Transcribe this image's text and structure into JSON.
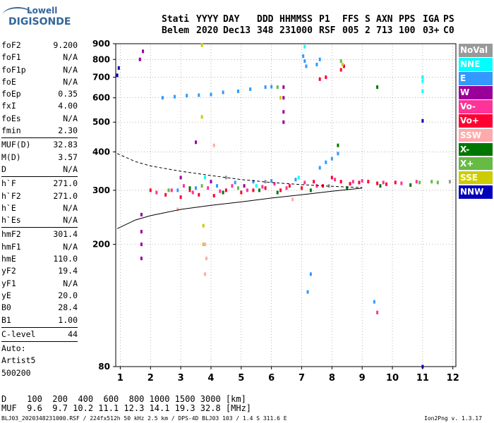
{
  "logo": {
    "line1": "Lowell",
    "line2": "DIGISONDE"
  },
  "header": {
    "labels": [
      "Stati",
      "YYYY",
      "DAY",
      "DDD",
      "HHMMSS",
      "P1",
      "FFS",
      "S",
      "AXN",
      "PPS",
      "IGA",
      "PS"
    ],
    "values": [
      "Belem",
      "2020",
      "Dec13",
      "348",
      "231000",
      "RSF",
      "005",
      "2",
      "713",
      "100",
      "03+",
      "C0"
    ]
  },
  "params": [
    {
      "name": "foF2",
      "value": "9.200"
    },
    {
      "name": "foF1",
      "value": "N/A"
    },
    {
      "name": "foF1p",
      "value": "N/A"
    },
    {
      "name": "foE",
      "value": "N/A"
    },
    {
      "name": "foEp",
      "value": "0.35"
    },
    {
      "name": "fxI",
      "value": "4.00"
    },
    {
      "name": "foEs",
      "value": "N/A"
    },
    {
      "name": "fmin",
      "value": "2.30"
    },
    {
      "sep": true
    },
    {
      "name": "MUF(D)",
      "value": "32.83"
    },
    {
      "name": "M(D)",
      "value": "3.57"
    },
    {
      "name": "D",
      "value": "N/A"
    },
    {
      "sep": true
    },
    {
      "name": "h`F",
      "value": "271.0"
    },
    {
      "name": "h`F2",
      "value": "271.0"
    },
    {
      "name": "h`E",
      "value": "N/A"
    },
    {
      "name": "h`Es",
      "value": "N/A"
    },
    {
      "sep": true
    },
    {
      "name": "hmF2",
      "value": "301.4"
    },
    {
      "name": "hmF1",
      "value": "N/A"
    },
    {
      "name": "hmE",
      "value": "110.0"
    },
    {
      "name": "yF2",
      "value": "19.4"
    },
    {
      "name": "yF1",
      "value": "N/A"
    },
    {
      "name": "yE",
      "value": "20.0"
    },
    {
      "name": "B0",
      "value": "28.4"
    },
    {
      "name": "B1",
      "value": "1.00"
    },
    {
      "sep": true
    },
    {
      "name": "C-level",
      "value": "44"
    },
    {
      "sep": true
    },
    {
      "name": "Auto:",
      "value": ""
    },
    {
      "name": "Artist5",
      "value": ""
    },
    {
      "name": "500200",
      "value": ""
    }
  ],
  "legend": [
    {
      "label": "NoVal",
      "color": "#999999"
    },
    {
      "label": "NNE",
      "color": "#00ffff"
    },
    {
      "label": "E",
      "color": "#3399ff"
    },
    {
      "label": "W",
      "color": "#990099"
    },
    {
      "label": "Vo-",
      "color": "#ff3399"
    },
    {
      "label": "Vo+",
      "color": "#ff0033"
    },
    {
      "label": "SSW",
      "color": "#ffaaaa"
    },
    {
      "label": "X-",
      "color": "#007700"
    },
    {
      "label": "X+",
      "color": "#66bb44"
    },
    {
      "label": "SSE",
      "color": "#cccc00"
    },
    {
      "label": "NNW",
      "color": "#0000bb"
    }
  ],
  "footer": {
    "d_label": "D",
    "d_values": "100  200  400  600  800 1000 1500 3000 [km]",
    "muf_label": "MUF",
    "muf_values": "9.6  9.7 10.2 11.1 12.3 14.1 19.3 32.8 [MHz]",
    "file": "BLJ03_2020348231000.RSF / 224fx512h 50 kHz 2.5 km / DPS-4D BLJ03 103 / 1.4 S 311.6 E",
    "version": "Ion2Png v. 1.3.17"
  },
  "chart_data": {
    "type": "scatter",
    "title": "",
    "xlabel": "",
    "ylabel": "",
    "xlim": [
      0.85,
      12.1
    ],
    "ylim": [
      80,
      900
    ],
    "x_ticks": [
      1,
      2,
      3,
      4,
      5,
      6,
      7,
      8,
      9,
      10,
      11,
      12
    ],
    "y_ticks": [
      80,
      200,
      300,
      400,
      500,
      600,
      700,
      800,
      900
    ],
    "grid": true,
    "x_scale": "linear",
    "y_scale": "log",
    "profile_curve": {
      "x": [
        0.9,
        1.5,
        2.0,
        3.0,
        4.0,
        5.0,
        6.0,
        7.0,
        8.0,
        9.0
      ],
      "y": [
        225,
        240,
        248,
        260,
        268,
        275,
        283,
        290,
        298,
        305
      ]
    },
    "dashed_curve": {
      "x": [
        0.9,
        1.5,
        2.0,
        3.0,
        4.0,
        5.0,
        6.0,
        7.0,
        8.0,
        9.0
      ],
      "y": [
        395,
        372,
        360,
        346,
        335,
        325,
        318,
        313,
        309,
        306
      ]
    },
    "series": [
      {
        "name": "E",
        "color": "#3399ff",
        "points": [
          [
            2.4,
            600
          ],
          [
            2.8,
            605
          ],
          [
            3.2,
            610
          ],
          [
            3.6,
            612
          ],
          [
            4.0,
            615
          ],
          [
            4.4,
            625
          ],
          [
            4.9,
            630
          ],
          [
            5.3,
            640
          ],
          [
            5.8,
            650
          ],
          [
            6.0,
            652
          ],
          [
            7.05,
            820
          ],
          [
            7.1,
            790
          ],
          [
            7.15,
            760
          ],
          [
            7.5,
            770
          ],
          [
            7.6,
            800
          ],
          [
            2.9,
            300
          ],
          [
            3.5,
            305
          ],
          [
            4.2,
            310
          ],
          [
            4.8,
            318
          ],
          [
            5.4,
            320
          ],
          [
            6.0,
            322
          ],
          [
            6.8,
            325
          ],
          [
            7.6,
            355
          ],
          [
            7.8,
            370
          ],
          [
            8.0,
            380
          ],
          [
            8.2,
            395
          ],
          [
            7.3,
            160
          ],
          [
            7.2,
            140
          ],
          [
            9.4,
            130
          ]
        ]
      },
      {
        "name": "Vo+",
        "color": "#ff0033",
        "points": [
          [
            2.0,
            300
          ],
          [
            2.5,
            290
          ],
          [
            3.0,
            285
          ],
          [
            3.3,
            300
          ],
          [
            3.6,
            290
          ],
          [
            4.1,
            288
          ],
          [
            4.5,
            300
          ],
          [
            5.0,
            295
          ],
          [
            5.4,
            300
          ],
          [
            5.8,
            305
          ],
          [
            6.3,
            300
          ],
          [
            6.6,
            310
          ],
          [
            7.0,
            305
          ],
          [
            7.4,
            320
          ],
          [
            7.7,
            310
          ],
          [
            8.0,
            330
          ],
          [
            8.3,
            320
          ],
          [
            8.6,
            315
          ],
          [
            8.9,
            318
          ],
          [
            9.2,
            320
          ],
          [
            9.5,
            316
          ],
          [
            9.8,
            314
          ],
          [
            10.1,
            318
          ],
          [
            7.6,
            690
          ],
          [
            7.8,
            700
          ],
          [
            8.3,
            740
          ],
          [
            8.4,
            760
          ]
        ]
      },
      {
        "name": "Vo-",
        "color": "#ff3399",
        "points": [
          [
            2.2,
            295
          ],
          [
            2.7,
            300
          ],
          [
            3.1,
            310
          ],
          [
            3.4,
            295
          ],
          [
            3.9,
            305
          ],
          [
            4.3,
            298
          ],
          [
            4.7,
            310
          ],
          [
            5.2,
            300
          ],
          [
            5.7,
            308
          ],
          [
            6.1,
            315
          ],
          [
            6.5,
            305
          ],
          [
            7.1,
            318
          ],
          [
            7.5,
            310
          ],
          [
            8.1,
            325
          ],
          [
            8.7,
            320
          ],
          [
            9.0,
            322
          ],
          [
            9.7,
            318
          ],
          [
            10.3,
            316
          ],
          [
            10.8,
            320
          ],
          [
            9.5,
            120
          ]
        ]
      },
      {
        "name": "W",
        "color": "#990099",
        "points": [
          [
            1.7,
            220
          ],
          [
            1.7,
            200
          ],
          [
            1.7,
            180
          ],
          [
            1.7,
            250
          ],
          [
            1.65,
            800
          ],
          [
            1.75,
            850
          ],
          [
            6.4,
            500
          ],
          [
            6.4,
            540
          ],
          [
            6.4,
            600
          ],
          [
            6.4,
            650
          ],
          [
            3.5,
            430
          ],
          [
            3.0,
            330
          ],
          [
            4.0,
            320
          ],
          [
            5.1,
            310
          ]
        ]
      },
      {
        "name": "NNE",
        "color": "#00ffff",
        "points": [
          [
            11.0,
            700
          ],
          [
            11.0,
            680
          ],
          [
            11.0,
            630
          ],
          [
            7.1,
            880
          ],
          [
            6.9,
            330
          ],
          [
            5.5,
            310
          ],
          [
            3.8,
            330
          ]
        ]
      },
      {
        "name": "X-",
        "color": "#007700",
        "points": [
          [
            3.3,
            305
          ],
          [
            4.4,
            295
          ],
          [
            5.6,
            300
          ],
          [
            6.2,
            295
          ],
          [
            7.3,
            300
          ],
          [
            8.5,
            305
          ],
          [
            9.6,
            310
          ],
          [
            10.6,
            312
          ],
          [
            8.2,
            420
          ],
          [
            9.5,
            650
          ]
        ]
      },
      {
        "name": "X+",
        "color": "#66bb44",
        "points": [
          [
            2.6,
            300
          ],
          [
            3.7,
            310
          ],
          [
            4.9,
            305
          ],
          [
            6.2,
            650
          ],
          [
            8.3,
            790
          ],
          [
            10.9,
            318
          ],
          [
            11.3,
            320
          ],
          [
            11.5,
            318
          ]
        ]
      },
      {
        "name": "SSE",
        "color": "#cccc00",
        "points": [
          [
            3.75,
            200
          ],
          [
            3.75,
            230
          ],
          [
            3.7,
            520
          ],
          [
            3.7,
            890
          ],
          [
            8.35,
            770
          ],
          [
            6.3,
            600
          ]
        ]
      },
      {
        "name": "SSW",
        "color": "#ffaaaa",
        "points": [
          [
            3.8,
            160
          ],
          [
            3.85,
            180
          ],
          [
            3.8,
            200
          ],
          [
            4.1,
            420
          ],
          [
            2.9,
            260
          ],
          [
            6.7,
            280
          ]
        ]
      },
      {
        "name": "NNW",
        "color": "#0000bb",
        "points": [
          [
            0.9,
            710
          ],
          [
            0.95,
            750
          ],
          [
            11.0,
            505
          ],
          [
            11.0,
            80
          ]
        ]
      },
      {
        "name": "NoVal",
        "color": "#999999",
        "points": [
          [
            4.5,
            330
          ],
          [
            5.8,
            320
          ],
          [
            7.9,
            310
          ],
          [
            11.9,
            320
          ]
        ]
      }
    ]
  }
}
